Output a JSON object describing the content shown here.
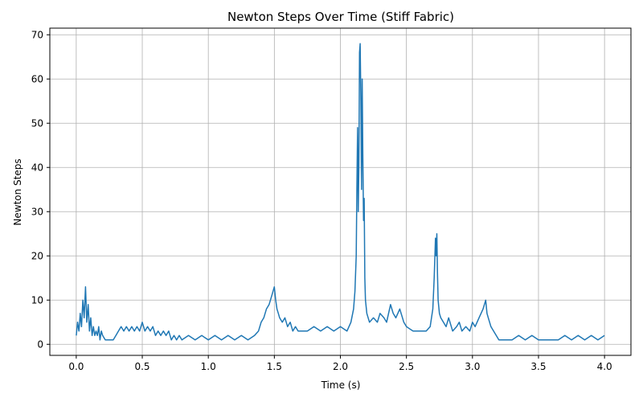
{
  "chart_data": {
    "type": "line",
    "title": "Newton Steps Over Time (Stiff Fabric)",
    "xlabel": "Time (s)",
    "ylabel": "Newton Steps",
    "xlim": [
      -0.2,
      4.2
    ],
    "ylim": [
      -2.5,
      71.5
    ],
    "xticks": [
      0.0,
      0.5,
      1.0,
      1.5,
      2.0,
      2.5,
      3.0,
      3.5,
      4.0
    ],
    "xtick_labels": [
      "0.0",
      "0.5",
      "1.0",
      "1.5",
      "2.0",
      "2.5",
      "3.0",
      "3.5",
      "4.0"
    ],
    "yticks": [
      0,
      10,
      20,
      30,
      40,
      50,
      60,
      70
    ],
    "ytick_labels": [
      "0",
      "10",
      "20",
      "30",
      "40",
      "50",
      "60",
      "70"
    ],
    "grid": true,
    "color": "#1f77b4",
    "x": [
      0.0,
      0.01,
      0.02,
      0.03,
      0.04,
      0.05,
      0.06,
      0.07,
      0.08,
      0.09,
      0.1,
      0.11,
      0.12,
      0.13,
      0.14,
      0.15,
      0.16,
      0.17,
      0.18,
      0.19,
      0.2,
      0.22,
      0.24,
      0.26,
      0.28,
      0.3,
      0.32,
      0.34,
      0.36,
      0.38,
      0.4,
      0.42,
      0.44,
      0.46,
      0.48,
      0.5,
      0.52,
      0.54,
      0.56,
      0.58,
      0.6,
      0.62,
      0.64,
      0.66,
      0.68,
      0.7,
      0.72,
      0.74,
      0.76,
      0.78,
      0.8,
      0.85,
      0.9,
      0.95,
      1.0,
      1.05,
      1.1,
      1.15,
      1.2,
      1.25,
      1.3,
      1.35,
      1.38,
      1.4,
      1.42,
      1.44,
      1.46,
      1.48,
      1.5,
      1.51,
      1.52,
      1.53,
      1.54,
      1.56,
      1.58,
      1.6,
      1.62,
      1.64,
      1.66,
      1.68,
      1.7,
      1.75,
      1.8,
      1.85,
      1.9,
      1.95,
      2.0,
      2.05,
      2.08,
      2.1,
      2.11,
      2.12,
      2.125,
      2.13,
      2.135,
      2.14,
      2.145,
      2.15,
      2.155,
      2.16,
      2.165,
      2.17,
      2.175,
      2.18,
      2.185,
      2.19,
      2.2,
      2.22,
      2.25,
      2.28,
      2.3,
      2.33,
      2.35,
      2.38,
      2.4,
      2.42,
      2.45,
      2.48,
      2.5,
      2.55,
      2.6,
      2.65,
      2.68,
      2.7,
      2.71,
      2.72,
      2.725,
      2.73,
      2.735,
      2.74,
      2.75,
      2.76,
      2.78,
      2.8,
      2.82,
      2.85,
      2.88,
      2.9,
      2.92,
      2.95,
      2.98,
      3.0,
      3.02,
      3.05,
      3.08,
      3.1,
      3.11,
      3.12,
      3.14,
      3.16,
      3.18,
      3.2,
      3.25,
      3.3,
      3.35,
      3.4,
      3.45,
      3.5,
      3.55,
      3.6,
      3.65,
      3.7,
      3.75,
      3.8,
      3.85,
      3.9,
      3.95,
      4.0
    ],
    "y": [
      2,
      5,
      3,
      7,
      4,
      10,
      6,
      13,
      5,
      9,
      3,
      6,
      2,
      4,
      2,
      3,
      2,
      4,
      1,
      3,
      2,
      1,
      1,
      1,
      1,
      2,
      3,
      4,
      3,
      4,
      3,
      4,
      3,
      4,
      3,
      5,
      3,
      4,
      3,
      4,
      2,
      3,
      2,
      3,
      2,
      3,
      1,
      2,
      1,
      2,
      1,
      2,
      1,
      2,
      1,
      2,
      1,
      2,
      1,
      2,
      1,
      2,
      3,
      5,
      6,
      8,
      9,
      11,
      13,
      10,
      8,
      7,
      6,
      5,
      6,
      4,
      5,
      3,
      4,
      3,
      3,
      3,
      4,
      3,
      4,
      3,
      4,
      3,
      5,
      8,
      12,
      20,
      35,
      49,
      30,
      40,
      66,
      68,
      55,
      35,
      60,
      43,
      28,
      33,
      15,
      10,
      7,
      5,
      6,
      5,
      7,
      6,
      5,
      9,
      7,
      6,
      8,
      5,
      4,
      3,
      3,
      3,
      4,
      8,
      15,
      24,
      20,
      25,
      16,
      10,
      7,
      6,
      5,
      4,
      6,
      3,
      4,
      5,
      3,
      4,
      3,
      5,
      4,
      6,
      8,
      10,
      7,
      6,
      4,
      3,
      2,
      1,
      1,
      1,
      2,
      1,
      2,
      1,
      1,
      1,
      1,
      2,
      1,
      2,
      1,
      2,
      1,
      2
    ]
  }
}
